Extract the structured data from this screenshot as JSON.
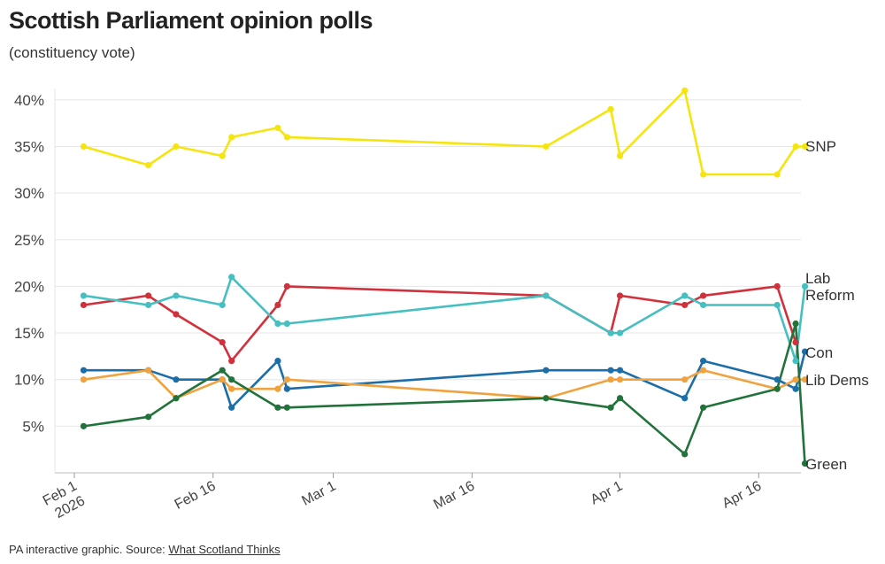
{
  "header": {
    "title": "Scottish Parliament opinion polls",
    "subtitle": "(constituency vote)"
  },
  "footer": {
    "source_prefix": "PA interactive graphic. Source: ",
    "source_link": "What Scotland Thinks"
  },
  "chart_data": {
    "type": "line",
    "title": "Scottish Parliament opinion polls",
    "subtitle": "(constituency vote)",
    "ylim": [
      0,
      40
    ],
    "yticks": [
      "5%",
      "10%",
      "15%",
      "20%",
      "25%",
      "30%",
      "35%",
      "40%"
    ],
    "ytick_values": [
      5,
      10,
      15,
      20,
      25,
      30,
      35,
      40
    ],
    "xticks": [
      {
        "label": "Feb 1",
        "label2": "2026",
        "date": "2026-02-01"
      },
      {
        "label": "Feb 16",
        "date": "2026-02-16"
      },
      {
        "label": "Mar 1",
        "date": "2026-03-01"
      },
      {
        "label": "Mar 16",
        "date": "2026-03-16"
      },
      {
        "label": "Apr 1",
        "date": "2026-04-01"
      },
      {
        "label": "Apr 16",
        "date": "2026-04-16"
      }
    ],
    "xlim": [
      "2026-01-29",
      "2026-04-22"
    ],
    "grid": true,
    "legend": "end-of-line labels",
    "x": [
      "2026-02-02",
      "2026-02-09",
      "2026-02-12",
      "2026-02-17",
      "2026-02-18",
      "2026-02-23",
      "2026-02-24",
      "2026-03-24",
      "2026-03-31",
      "2026-04-01",
      "2026-04-08",
      "2026-04-10",
      "2026-04-18",
      "2026-04-20",
      "2026-04-21"
    ],
    "series": [
      {
        "name": "SNP",
        "color": "#f5e50f",
        "points": [
          [
            "2026-02-02",
            35
          ],
          [
            "2026-02-09",
            33
          ],
          [
            "2026-02-12",
            35
          ],
          [
            "2026-02-17",
            34
          ],
          [
            "2026-02-18",
            36
          ],
          [
            "2026-02-23",
            37
          ],
          [
            "2026-02-24",
            36
          ],
          [
            "2026-03-24",
            35
          ],
          [
            "2026-03-31",
            39
          ],
          [
            "2026-04-01",
            34
          ],
          [
            "2026-04-08",
            41
          ],
          [
            "2026-04-10",
            32
          ],
          [
            "2026-04-18",
            32
          ],
          [
            "2026-04-20",
            35
          ],
          [
            "2026-04-21",
            35
          ]
        ]
      },
      {
        "name": "Lab",
        "color": "#d1313b",
        "points": [
          [
            "2026-02-02",
            18
          ],
          [
            "2026-02-09",
            19
          ],
          [
            "2026-02-12",
            17
          ],
          [
            "2026-02-17",
            14
          ],
          [
            "2026-02-18",
            12
          ],
          [
            "2026-02-23",
            18
          ],
          [
            "2026-02-24",
            20
          ],
          [
            "2026-03-24",
            19
          ],
          [
            "2026-03-31",
            15
          ],
          [
            "2026-04-01",
            19
          ],
          [
            "2026-04-08",
            18
          ],
          [
            "2026-04-10",
            19
          ],
          [
            "2026-04-18",
            20
          ],
          [
            "2026-04-20",
            14
          ]
        ]
      },
      {
        "name": "Reform",
        "color": "#46bfc1",
        "points": [
          [
            "2026-02-02",
            19
          ],
          [
            "2026-02-09",
            18
          ],
          [
            "2026-02-12",
            19
          ],
          [
            "2026-02-17",
            18
          ],
          [
            "2026-02-18",
            21
          ],
          [
            "2026-02-23",
            16
          ],
          [
            "2026-02-24",
            16
          ],
          [
            "2026-03-24",
            19
          ],
          [
            "2026-03-31",
            15
          ],
          [
            "2026-04-01",
            15
          ],
          [
            "2026-04-08",
            19
          ],
          [
            "2026-04-10",
            18
          ],
          [
            "2026-04-18",
            18
          ],
          [
            "2026-04-20",
            12
          ],
          [
            "2026-04-21",
            20
          ]
        ]
      },
      {
        "name": "Con",
        "color": "#1c6ea8",
        "points": [
          [
            "2026-02-02",
            11
          ],
          [
            "2026-02-09",
            11
          ],
          [
            "2026-02-12",
            10
          ],
          [
            "2026-02-17",
            10
          ],
          [
            "2026-02-18",
            7
          ],
          [
            "2026-02-23",
            12
          ],
          [
            "2026-02-24",
            9
          ],
          [
            "2026-03-24",
            11
          ],
          [
            "2026-03-31",
            11
          ],
          [
            "2026-04-01",
            11
          ],
          [
            "2026-04-08",
            8
          ],
          [
            "2026-04-10",
            12
          ],
          [
            "2026-04-18",
            10
          ],
          [
            "2026-04-20",
            9
          ],
          [
            "2026-04-21",
            13
          ]
        ]
      },
      {
        "name": "Lib Dems",
        "color": "#f0a23e",
        "points": [
          [
            "2026-02-02",
            10
          ],
          [
            "2026-02-09",
            11
          ],
          [
            "2026-02-12",
            8
          ],
          [
            "2026-02-17",
            10
          ],
          [
            "2026-02-18",
            9
          ],
          [
            "2026-02-23",
            9
          ],
          [
            "2026-02-24",
            10
          ],
          [
            "2026-03-24",
            8
          ],
          [
            "2026-03-31",
            10
          ],
          [
            "2026-04-01",
            10
          ],
          [
            "2026-04-08",
            10
          ],
          [
            "2026-04-10",
            11
          ],
          [
            "2026-04-18",
            9
          ],
          [
            "2026-04-20",
            10
          ],
          [
            "2026-04-21",
            10
          ]
        ]
      },
      {
        "name": "Green",
        "color": "#21723b",
        "points": [
          [
            "2026-02-02",
            5
          ],
          [
            "2026-02-09",
            6
          ],
          [
            "2026-02-12",
            8
          ],
          [
            "2026-02-17",
            11
          ],
          [
            "2026-02-18",
            10
          ],
          [
            "2026-02-23",
            7
          ],
          [
            "2026-02-24",
            7
          ],
          [
            "2026-03-24",
            8
          ],
          [
            "2026-03-31",
            7
          ],
          [
            "2026-04-01",
            8
          ],
          [
            "2026-04-08",
            2
          ],
          [
            "2026-04-10",
            7
          ],
          [
            "2026-04-18",
            9
          ],
          [
            "2026-04-20",
            16
          ],
          [
            "2026-04-21",
            1
          ]
        ]
      }
    ]
  }
}
